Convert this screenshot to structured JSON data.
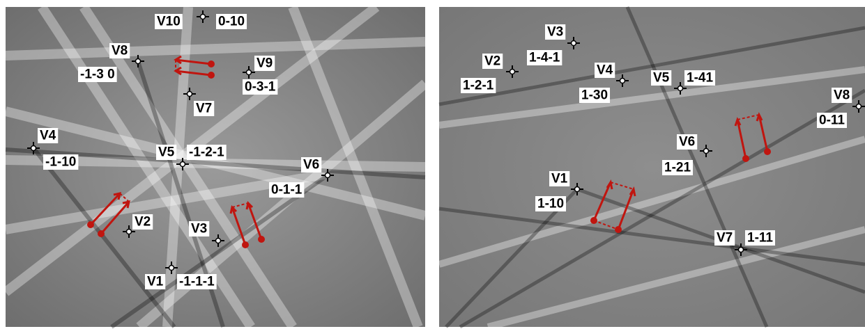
{
  "panels": [
    {
      "markers": [
        {
          "name": "V10",
          "index": "0-10"
        },
        {
          "name": "V8",
          "index": "-1-3 0"
        },
        {
          "name": "V9",
          "index": "0-3-1"
        },
        {
          "name": "V7"
        },
        {
          "name": "V4",
          "index": "-1-10"
        },
        {
          "name": "V5",
          "index": "-1-2-1"
        },
        {
          "name": "V6",
          "index": "0-1-1"
        },
        {
          "name": "V2"
        },
        {
          "name": "V3"
        },
        {
          "name": "V1",
          "index": "-1-1-1"
        }
      ]
    },
    {
      "markers": [
        {
          "name": "V3",
          "index": "1-4-1"
        },
        {
          "name": "V2",
          "index": "1-2-1"
        },
        {
          "name": "V4",
          "index": "1-30"
        },
        {
          "name": "V5",
          "index": "1-41"
        },
        {
          "name": "V8",
          "index": "0-11"
        },
        {
          "name": "V6",
          "index": "1-21"
        },
        {
          "name": "V1",
          "index": "1-10"
        },
        {
          "name": "V7",
          "index": "1-11"
        }
      ]
    }
  ]
}
